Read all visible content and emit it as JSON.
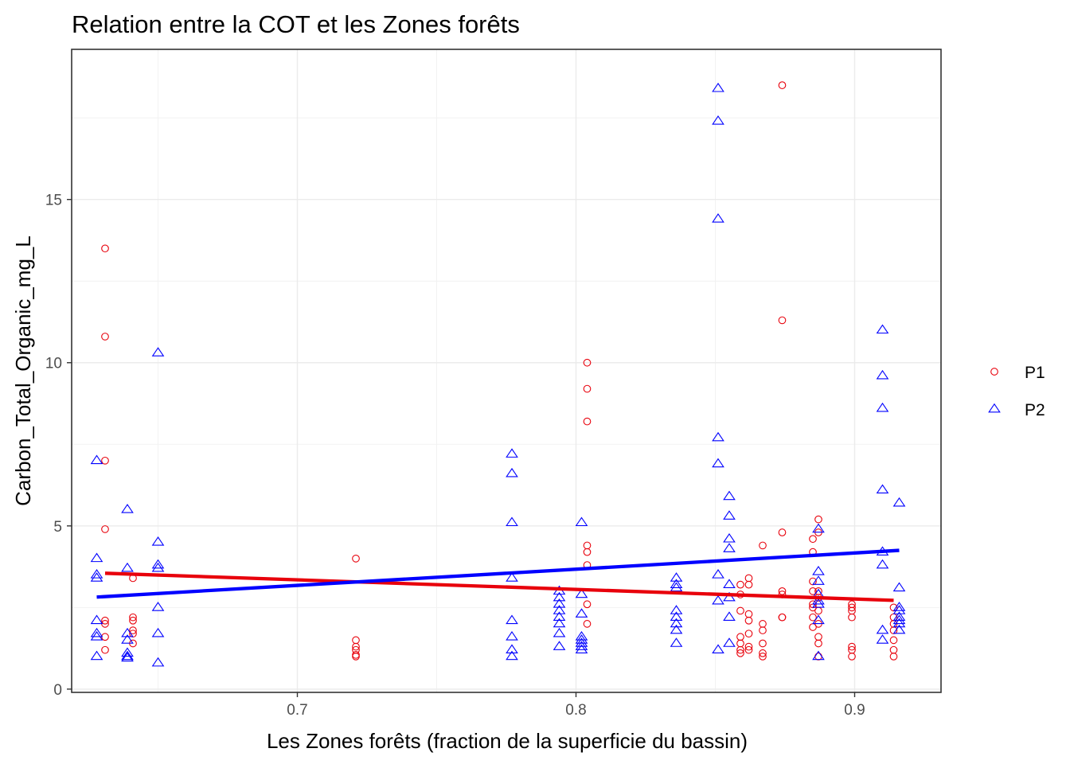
{
  "chart_data": {
    "type": "scatter",
    "title": "Relation entre la COT et les Zones forêts",
    "xlabel": "Les Zones forêts (fraction de la superficie du bassin)",
    "ylabel": "Carbon_Total_Organic_mg_L",
    "xlim": [
      0.619,
      0.931
    ],
    "ylim": [
      -0.1,
      19.6
    ],
    "x_ticks": [
      0.7,
      0.8,
      0.9
    ],
    "x_tick_labels": [
      "0.7",
      "0.8",
      "0.9"
    ],
    "y_ticks": [
      0,
      5,
      10,
      15
    ],
    "y_tick_labels": [
      "0",
      "5",
      "10",
      "15"
    ],
    "grid": true,
    "legend_position": "right",
    "series": [
      {
        "name": "P1",
        "marker": "circle",
        "color": "#e8000b",
        "points": [
          [
            0.631,
            13.5
          ],
          [
            0.631,
            10.8
          ],
          [
            0.631,
            7.0
          ],
          [
            0.631,
            4.9
          ],
          [
            0.631,
            2.1
          ],
          [
            0.631,
            2.0
          ],
          [
            0.631,
            1.6
          ],
          [
            0.631,
            1.2
          ],
          [
            0.641,
            3.4
          ],
          [
            0.641,
            2.2
          ],
          [
            0.641,
            2.1
          ],
          [
            0.641,
            1.8
          ],
          [
            0.641,
            1.7
          ],
          [
            0.641,
            1.4
          ],
          [
            0.721,
            4.0
          ],
          [
            0.721,
            1.5
          ],
          [
            0.721,
            1.3
          ],
          [
            0.721,
            1.2
          ],
          [
            0.721,
            1.05
          ],
          [
            0.721,
            1.0
          ],
          [
            0.804,
            10.0
          ],
          [
            0.804,
            9.2
          ],
          [
            0.804,
            8.2
          ],
          [
            0.804,
            4.4
          ],
          [
            0.804,
            4.2
          ],
          [
            0.804,
            3.8
          ],
          [
            0.804,
            2.6
          ],
          [
            0.804,
            2.0
          ],
          [
            0.859,
            3.2
          ],
          [
            0.859,
            2.9
          ],
          [
            0.859,
            2.4
          ],
          [
            0.859,
            1.6
          ],
          [
            0.859,
            1.4
          ],
          [
            0.859,
            1.2
          ],
          [
            0.859,
            1.1
          ],
          [
            0.862,
            3.4
          ],
          [
            0.862,
            3.2
          ],
          [
            0.862,
            2.3
          ],
          [
            0.862,
            2.1
          ],
          [
            0.862,
            1.7
          ],
          [
            0.862,
            1.3
          ],
          [
            0.862,
            1.2
          ],
          [
            0.867,
            4.4
          ],
          [
            0.867,
            2.0
          ],
          [
            0.867,
            1.8
          ],
          [
            0.867,
            1.4
          ],
          [
            0.867,
            1.1
          ],
          [
            0.867,
            1.0
          ],
          [
            0.874,
            18.5
          ],
          [
            0.874,
            11.3
          ],
          [
            0.874,
            4.8
          ],
          [
            0.874,
            3.0
          ],
          [
            0.874,
            2.9
          ],
          [
            0.874,
            2.2
          ],
          [
            0.874,
            2.2
          ],
          [
            0.885,
            4.6
          ],
          [
            0.885,
            4.2
          ],
          [
            0.885,
            3.3
          ],
          [
            0.885,
            3.0
          ],
          [
            0.885,
            2.6
          ],
          [
            0.885,
            2.5
          ],
          [
            0.885,
            2.2
          ],
          [
            0.885,
            1.9
          ],
          [
            0.887,
            5.2
          ],
          [
            0.887,
            4.8
          ],
          [
            0.887,
            3.0
          ],
          [
            0.887,
            2.8
          ],
          [
            0.887,
            2.4
          ],
          [
            0.887,
            2.0
          ],
          [
            0.887,
            1.6
          ],
          [
            0.887,
            1.4
          ],
          [
            0.887,
            1.0
          ],
          [
            0.899,
            2.6
          ],
          [
            0.899,
            2.5
          ],
          [
            0.899,
            2.4
          ],
          [
            0.899,
            2.2
          ],
          [
            0.899,
            1.3
          ],
          [
            0.899,
            1.2
          ],
          [
            0.899,
            1.0
          ],
          [
            0.914,
            2.5
          ],
          [
            0.914,
            2.2
          ],
          [
            0.914,
            2.0
          ],
          [
            0.914,
            1.8
          ],
          [
            0.914,
            1.5
          ],
          [
            0.914,
            1.2
          ],
          [
            0.914,
            1.0
          ]
        ],
        "trend_line": [
          [
            0.631,
            3.55
          ],
          [
            0.914,
            2.72
          ]
        ]
      },
      {
        "name": "P2",
        "marker": "triangle",
        "color": "#0000ff",
        "points": [
          [
            0.628,
            7.0
          ],
          [
            0.628,
            4.0
          ],
          [
            0.628,
            3.5
          ],
          [
            0.628,
            3.4
          ],
          [
            0.628,
            2.1
          ],
          [
            0.628,
            1.7
          ],
          [
            0.628,
            1.6
          ],
          [
            0.628,
            1.0
          ],
          [
            0.639,
            5.5
          ],
          [
            0.639,
            3.7
          ],
          [
            0.639,
            1.7
          ],
          [
            0.639,
            1.5
          ],
          [
            0.639,
            1.1
          ],
          [
            0.639,
            1.0
          ],
          [
            0.639,
            0.95
          ],
          [
            0.65,
            10.3
          ],
          [
            0.65,
            4.5
          ],
          [
            0.65,
            3.8
          ],
          [
            0.65,
            3.7
          ],
          [
            0.65,
            2.5
          ],
          [
            0.65,
            1.7
          ],
          [
            0.65,
            0.8
          ],
          [
            0.777,
            7.2
          ],
          [
            0.777,
            6.6
          ],
          [
            0.777,
            5.1
          ],
          [
            0.777,
            3.4
          ],
          [
            0.777,
            2.1
          ],
          [
            0.777,
            1.6
          ],
          [
            0.777,
            1.2
          ],
          [
            0.777,
            1.0
          ],
          [
            0.794,
            3.0
          ],
          [
            0.794,
            2.8
          ],
          [
            0.794,
            2.6
          ],
          [
            0.794,
            2.4
          ],
          [
            0.794,
            2.2
          ],
          [
            0.794,
            2.0
          ],
          [
            0.794,
            1.7
          ],
          [
            0.794,
            1.3
          ],
          [
            0.802,
            5.1
          ],
          [
            0.802,
            2.9
          ],
          [
            0.802,
            2.3
          ],
          [
            0.802,
            1.6
          ],
          [
            0.802,
            1.5
          ],
          [
            0.802,
            1.4
          ],
          [
            0.802,
            1.3
          ],
          [
            0.802,
            1.2
          ],
          [
            0.836,
            3.4
          ],
          [
            0.836,
            3.2
          ],
          [
            0.836,
            3.1
          ],
          [
            0.836,
            2.4
          ],
          [
            0.836,
            2.2
          ],
          [
            0.836,
            2.0
          ],
          [
            0.836,
            1.8
          ],
          [
            0.836,
            1.4
          ],
          [
            0.851,
            18.4
          ],
          [
            0.851,
            17.4
          ],
          [
            0.851,
            14.4
          ],
          [
            0.851,
            7.7
          ],
          [
            0.851,
            6.9
          ],
          [
            0.851,
            3.5
          ],
          [
            0.851,
            2.7
          ],
          [
            0.851,
            1.2
          ],
          [
            0.855,
            5.9
          ],
          [
            0.855,
            5.3
          ],
          [
            0.855,
            4.6
          ],
          [
            0.855,
            4.3
          ],
          [
            0.855,
            3.2
          ],
          [
            0.855,
            2.8
          ],
          [
            0.855,
            2.2
          ],
          [
            0.855,
            1.4
          ],
          [
            0.887,
            4.9
          ],
          [
            0.887,
            3.6
          ],
          [
            0.887,
            3.3
          ],
          [
            0.887,
            2.9
          ],
          [
            0.887,
            2.7
          ],
          [
            0.887,
            2.6
          ],
          [
            0.887,
            2.1
          ],
          [
            0.887,
            1.0
          ],
          [
            0.91,
            11.0
          ],
          [
            0.91,
            9.6
          ],
          [
            0.91,
            8.6
          ],
          [
            0.91,
            6.1
          ],
          [
            0.91,
            4.2
          ],
          [
            0.91,
            3.8
          ],
          [
            0.91,
            1.8
          ],
          [
            0.91,
            1.5
          ],
          [
            0.916,
            5.7
          ],
          [
            0.916,
            3.1
          ],
          [
            0.916,
            2.5
          ],
          [
            0.916,
            2.4
          ],
          [
            0.916,
            2.2
          ],
          [
            0.916,
            2.1
          ],
          [
            0.916,
            2.0
          ],
          [
            0.916,
            1.8
          ]
        ],
        "trend_line": [
          [
            0.628,
            2.82
          ],
          [
            0.916,
            4.25
          ]
        ]
      }
    ]
  }
}
